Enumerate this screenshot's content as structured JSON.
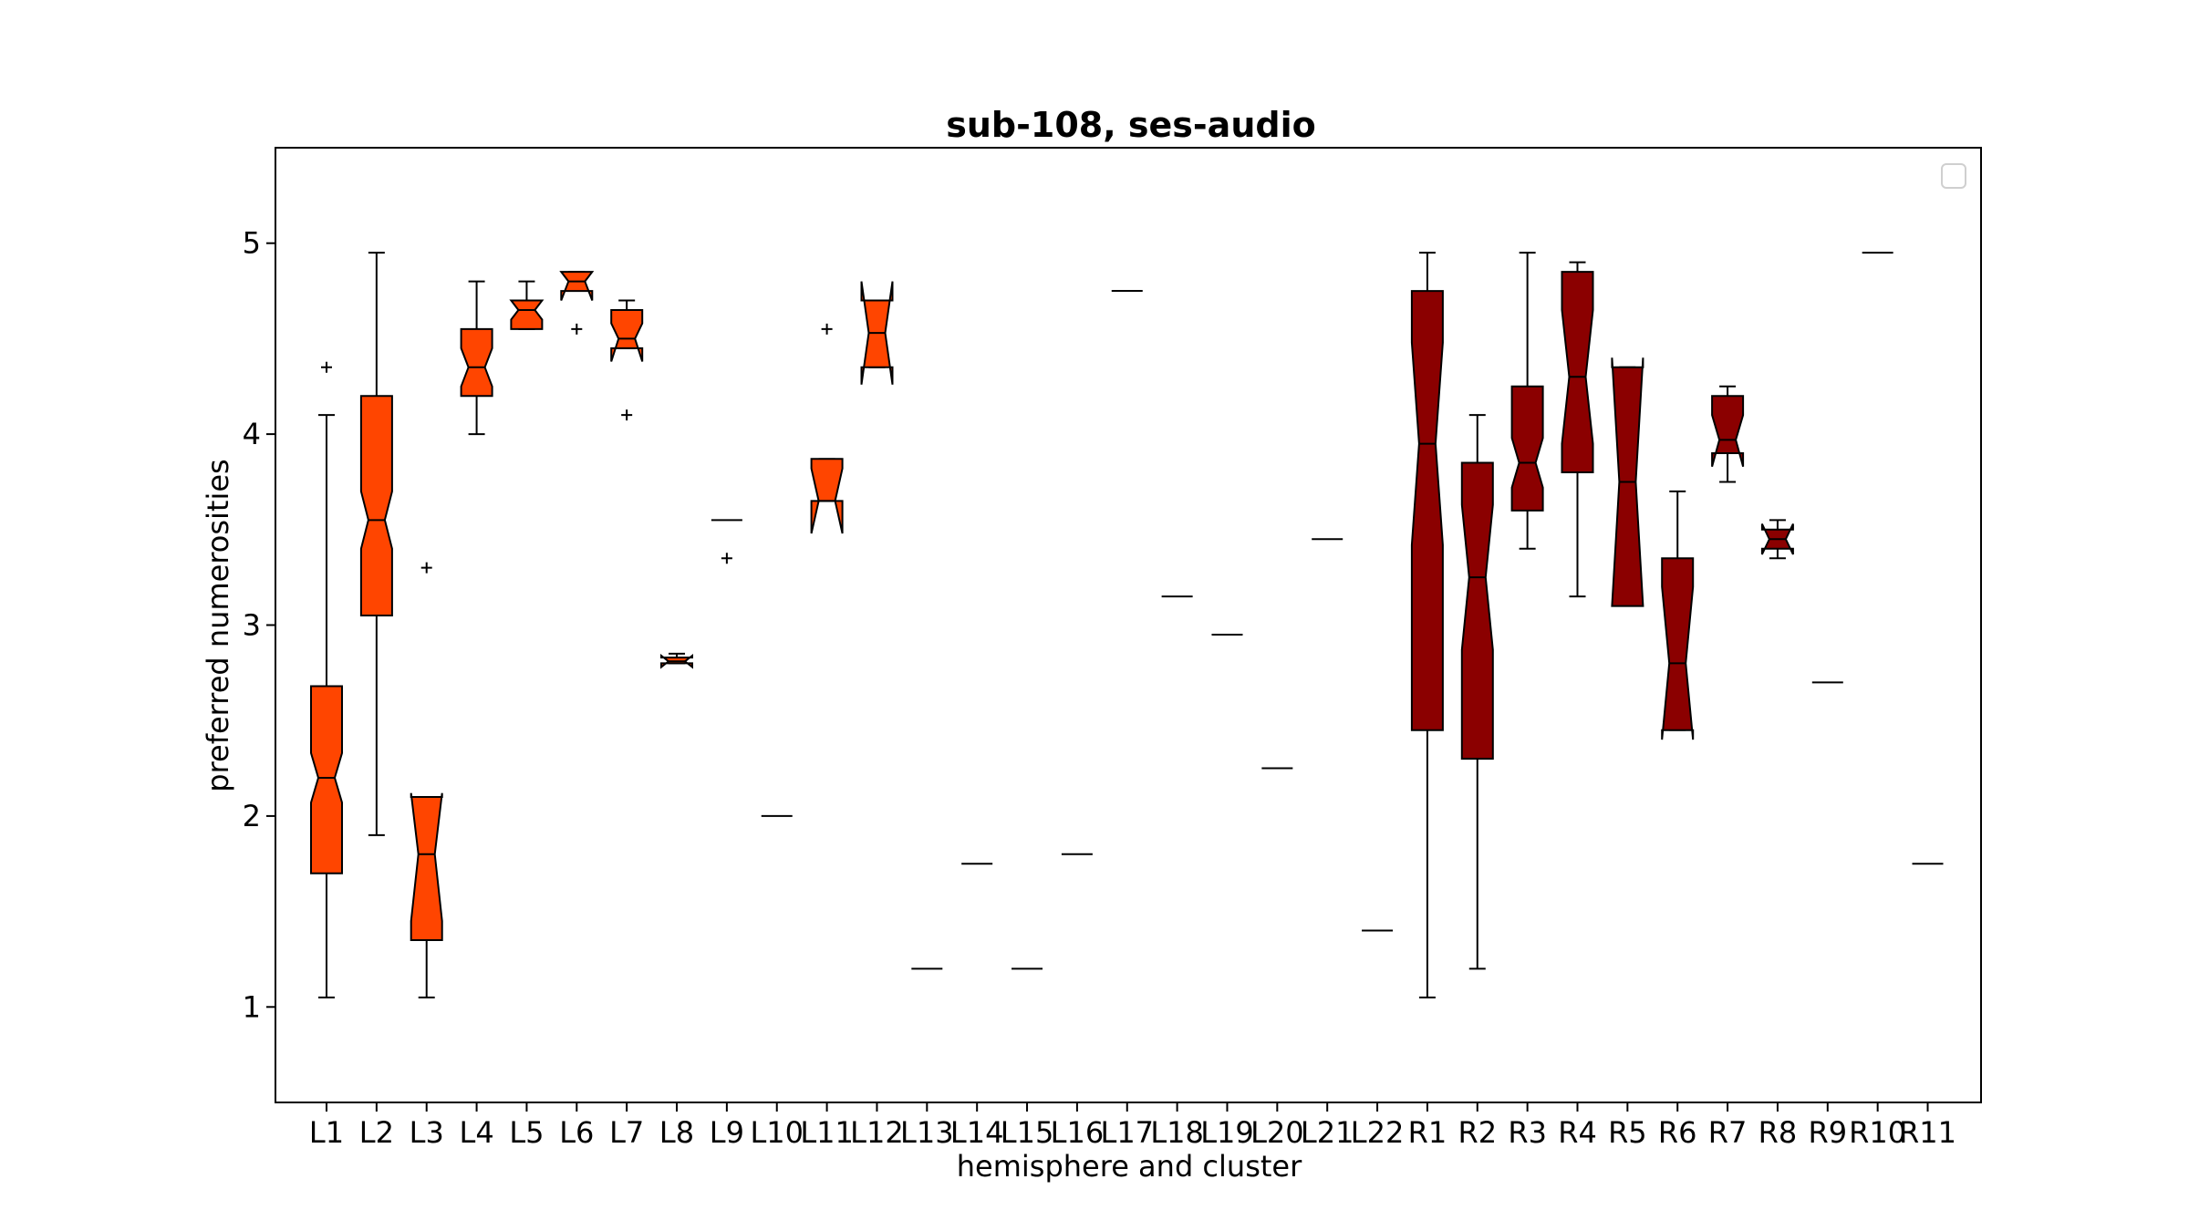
{
  "chart_data": {
    "type": "box",
    "title": "sub-108, ses-audio",
    "xlabel": "hemisphere and cluster",
    "ylabel": "preferred numerosities",
    "ylim": [
      0.5,
      5.5
    ],
    "yticks": [
      1,
      2,
      3,
      4,
      5
    ],
    "grid": false,
    "legend": "top-right (empty)",
    "colors": {
      "left": "#ff4500",
      "right": "#8b0000",
      "median": "#000000",
      "outline": "#000000"
    },
    "categories": [
      "L1",
      "L2",
      "L3",
      "L4",
      "L5",
      "L6",
      "L7",
      "L8",
      "L9",
      "L10",
      "L11",
      "L12",
      "L13",
      "L14",
      "L15",
      "L16",
      "L17",
      "L18",
      "L19",
      "L20",
      "L21",
      "L22",
      "R1",
      "R2",
      "R3",
      "R4",
      "R5",
      "R6",
      "R7",
      "R8",
      "R9",
      "R10",
      "R11"
    ],
    "series": [
      {
        "group": "L",
        "values": [
          {
            "label": "L1",
            "q1": 1.7,
            "med": 2.2,
            "q3": 2.68,
            "lo": 1.05,
            "hi": 4.1,
            "nlo": 2.07,
            "nhi": 2.33,
            "fliers": [
              4.35
            ]
          },
          {
            "label": "L2",
            "q1": 3.05,
            "med": 3.55,
            "q3": 4.2,
            "lo": 1.9,
            "hi": 4.95,
            "nlo": 3.4,
            "nhi": 3.7,
            "fliers": []
          },
          {
            "label": "L3",
            "q1": 1.35,
            "med": 1.8,
            "q3": 2.1,
            "lo": 1.05,
            "hi": 2.1,
            "nlo": 1.45,
            "nhi": 2.12,
            "fliers": [
              3.3
            ]
          },
          {
            "label": "L4",
            "q1": 4.2,
            "med": 4.35,
            "q3": 4.55,
            "lo": 4.0,
            "hi": 4.8,
            "nlo": 4.25,
            "nhi": 4.45,
            "fliers": []
          },
          {
            "label": "L5",
            "q1": 4.55,
            "med": 4.65,
            "q3": 4.7,
            "lo": 4.55,
            "hi": 4.8,
            "nlo": 4.6,
            "nhi": 4.7,
            "fliers": []
          },
          {
            "label": "L6",
            "q1": 4.75,
            "med": 4.8,
            "q3": 4.85,
            "lo": 4.75,
            "hi": 4.85,
            "nlo": 4.7,
            "nhi": 4.85,
            "fliers": [
              4.55
            ]
          },
          {
            "label": "L7",
            "q1": 4.45,
            "med": 4.5,
            "q3": 4.65,
            "lo": 4.45,
            "hi": 4.7,
            "nlo": 4.38,
            "nhi": 4.58,
            "fliers": [
              4.1
            ]
          },
          {
            "label": "L8",
            "q1": 2.8,
            "med": 2.81,
            "q3": 2.83,
            "lo": 2.8,
            "hi": 2.85,
            "nlo": 2.78,
            "nhi": 2.84,
            "fliers": []
          },
          {
            "label": "L9",
            "q1": 3.55,
            "med": 3.55,
            "q3": 3.55,
            "lo": 3.55,
            "hi": 3.55,
            "nlo": 3.55,
            "nhi": 3.55,
            "fliers": [
              3.35
            ]
          },
          {
            "label": "L10",
            "q1": 2.0,
            "med": 2.0,
            "q3": 2.0,
            "lo": 2.0,
            "hi": 2.0,
            "nlo": 2.0,
            "nhi": 2.0,
            "fliers": []
          },
          {
            "label": "L11",
            "q1": 3.65,
            "med": 3.65,
            "q3": 3.87,
            "lo": 3.65,
            "hi": 3.87,
            "nlo": 3.48,
            "nhi": 3.82,
            "fliers": [
              4.55
            ]
          },
          {
            "label": "L12",
            "q1": 4.35,
            "med": 4.53,
            "q3": 4.7,
            "lo": 4.35,
            "hi": 4.7,
            "nlo": 4.26,
            "nhi": 4.8,
            "fliers": []
          },
          {
            "label": "L13",
            "q1": 1.2,
            "med": 1.2,
            "q3": 1.2,
            "lo": 1.2,
            "hi": 1.2,
            "nlo": 1.2,
            "nhi": 1.2,
            "fliers": []
          },
          {
            "label": "L14",
            "q1": 1.75,
            "med": 1.75,
            "q3": 1.75,
            "lo": 1.75,
            "hi": 1.75,
            "nlo": 1.75,
            "nhi": 1.75,
            "fliers": []
          },
          {
            "label": "L15",
            "q1": 1.2,
            "med": 1.2,
            "q3": 1.2,
            "lo": 1.2,
            "hi": 1.2,
            "nlo": 1.2,
            "nhi": 1.2,
            "fliers": []
          },
          {
            "label": "L16",
            "q1": 1.8,
            "med": 1.8,
            "q3": 1.8,
            "lo": 1.8,
            "hi": 1.8,
            "nlo": 1.8,
            "nhi": 1.8,
            "fliers": []
          },
          {
            "label": "L17",
            "q1": 4.75,
            "med": 4.75,
            "q3": 4.75,
            "lo": 4.75,
            "hi": 4.75,
            "nlo": 4.75,
            "nhi": 4.75,
            "fliers": []
          },
          {
            "label": "L18",
            "q1": 3.15,
            "med": 3.15,
            "q3": 3.15,
            "lo": 3.15,
            "hi": 3.15,
            "nlo": 3.15,
            "nhi": 3.15,
            "fliers": []
          },
          {
            "label": "L19",
            "q1": 2.95,
            "med": 2.95,
            "q3": 2.95,
            "lo": 2.95,
            "hi": 2.95,
            "nlo": 2.95,
            "nhi": 2.95,
            "fliers": []
          },
          {
            "label": "L20",
            "q1": 2.25,
            "med": 2.25,
            "q3": 2.25,
            "lo": 2.25,
            "hi": 2.25,
            "nlo": 2.25,
            "nhi": 2.25,
            "fliers": []
          },
          {
            "label": "L21",
            "q1": 3.45,
            "med": 3.45,
            "q3": 3.45,
            "lo": 3.45,
            "hi": 3.45,
            "nlo": 3.45,
            "nhi": 3.45,
            "fliers": []
          },
          {
            "label": "L22",
            "q1": 1.4,
            "med": 1.4,
            "q3": 1.4,
            "lo": 1.4,
            "hi": 1.4,
            "nlo": 1.4,
            "nhi": 1.4,
            "fliers": []
          }
        ]
      },
      {
        "group": "R",
        "values": [
          {
            "label": "R1",
            "q1": 2.45,
            "med": 3.95,
            "q3": 4.75,
            "lo": 1.05,
            "hi": 4.95,
            "nlo": 3.42,
            "nhi": 4.48,
            "fliers": []
          },
          {
            "label": "R2",
            "q1": 2.3,
            "med": 3.25,
            "q3": 3.85,
            "lo": 1.2,
            "hi": 4.1,
            "nlo": 2.87,
            "nhi": 3.63,
            "fliers": []
          },
          {
            "label": "R3",
            "q1": 3.6,
            "med": 3.85,
            "q3": 4.25,
            "lo": 3.4,
            "hi": 4.95,
            "nlo": 3.72,
            "nhi": 3.98,
            "fliers": []
          },
          {
            "label": "R4",
            "q1": 3.8,
            "med": 4.3,
            "q3": 4.85,
            "lo": 3.15,
            "hi": 4.9,
            "nlo": 3.95,
            "nhi": 4.65,
            "fliers": []
          },
          {
            "label": "R5",
            "q1": 3.1,
            "med": 3.75,
            "q3": 4.35,
            "lo": 3.1,
            "hi": 4.35,
            "nlo": 3.1,
            "nhi": 4.4,
            "fliers": []
          },
          {
            "label": "R6",
            "q1": 2.45,
            "med": 2.8,
            "q3": 3.35,
            "lo": 2.45,
            "hi": 3.7,
            "nlo": 2.4,
            "nhi": 3.2,
            "fliers": []
          },
          {
            "label": "R7",
            "q1": 3.9,
            "med": 3.97,
            "q3": 4.2,
            "lo": 3.75,
            "hi": 4.25,
            "nlo": 3.83,
            "nhi": 4.1,
            "fliers": []
          },
          {
            "label": "R8",
            "q1": 3.4,
            "med": 3.45,
            "q3": 3.5,
            "lo": 3.35,
            "hi": 3.55,
            "nlo": 3.37,
            "nhi": 3.53,
            "fliers": []
          },
          {
            "label": "R9",
            "q1": 2.7,
            "med": 2.7,
            "q3": 2.7,
            "lo": 2.7,
            "hi": 2.7,
            "nlo": 2.7,
            "nhi": 2.7,
            "fliers": []
          },
          {
            "label": "R10",
            "q1": 4.95,
            "med": 4.95,
            "q3": 4.95,
            "lo": 4.95,
            "hi": 4.95,
            "nlo": 4.95,
            "nhi": 4.95,
            "fliers": []
          },
          {
            "label": "R11",
            "q1": 1.75,
            "med": 1.75,
            "q3": 1.75,
            "lo": 1.75,
            "hi": 1.75,
            "nlo": 1.75,
            "nhi": 1.75,
            "fliers": []
          }
        ]
      }
    ]
  }
}
